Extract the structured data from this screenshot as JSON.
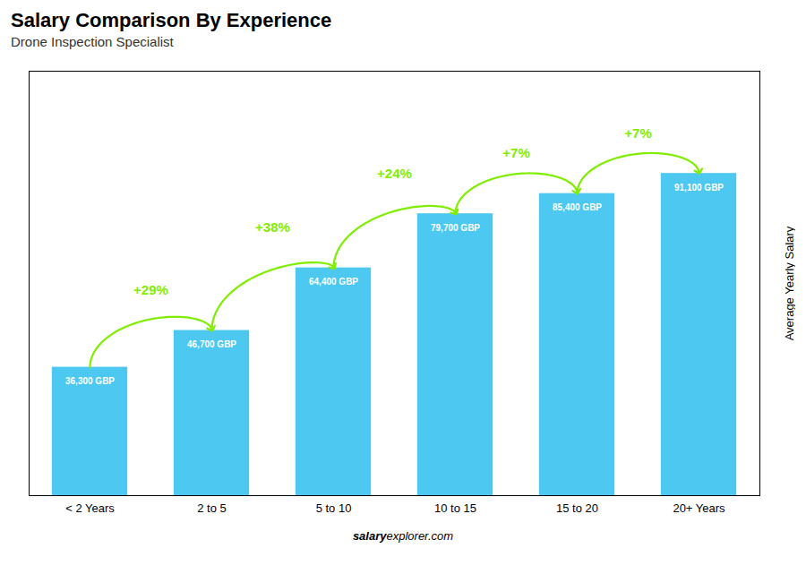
{
  "chart_data": {
    "type": "bar",
    "title": "Salary Comparison By Experience",
    "subtitle": "Drone Inspection Specialist",
    "categories": [
      "< 2 Years",
      "2 to 5",
      "5 to 10",
      "10 to 15",
      "15 to 20",
      "20+ Years"
    ],
    "values": [
      36300,
      46700,
      64400,
      79700,
      85400,
      91100
    ],
    "value_labels": [
      "36,300 GBP",
      "46,700 GBP",
      "64,400 GBP",
      "79,700 GBP",
      "85,400 GBP",
      "91,100 GBP"
    ],
    "data_labels": true,
    "color": "#4DC8F0",
    "ylabel": "Average Yearly Salary",
    "ylim": [
      0,
      120000
    ],
    "yticks": [],
    "tick_labels": "x",
    "annotations": [
      "+29%",
      "+38%",
      "+24%",
      "+7%",
      "+7%"
    ],
    "watermark": [
      "salary",
      "explorer.com"
    ]
  }
}
